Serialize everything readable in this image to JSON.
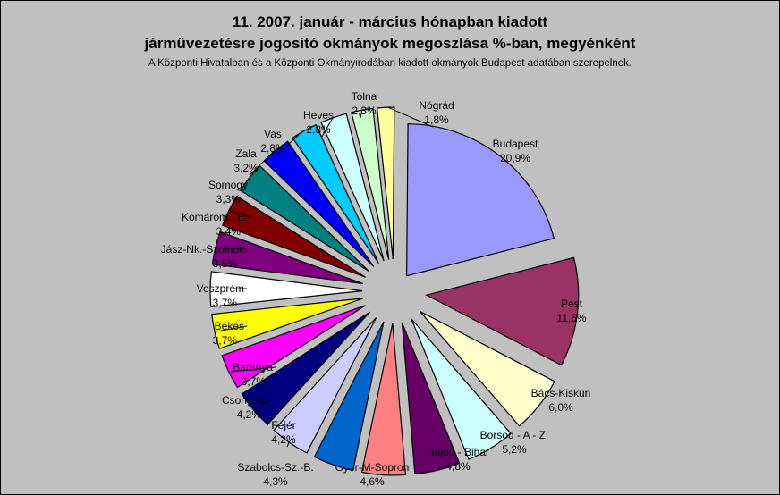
{
  "chart_data": {
    "type": "pie",
    "title_line1": "11. 2007. január - március hónapban kiadott",
    "title_line2": "járművezetésre jogosító okmányok megoszlása %-ban, megyénként",
    "subtitle": "A Központi Hivatalban és a Központi Okmányirodában kiadott okmányok Budapest adatában szerepelnek.",
    "legend": "none",
    "exploded": true,
    "slices": [
      {
        "name": "Budapest",
        "value": 20.9,
        "label": "20,9%",
        "color": "#9999ff"
      },
      {
        "name": "Pest",
        "value": 11.6,
        "label": "11,6%",
        "color": "#993366"
      },
      {
        "name": "Bács-Kiskun",
        "value": 6.0,
        "label": "6,0%",
        "color": "#ffffcc"
      },
      {
        "name": "Borsod - A - Z.",
        "value": 5.2,
        "label": "5,2%",
        "color": "#ccffff"
      },
      {
        "name": "Hajdú - Bihar",
        "value": 4.8,
        "label": "4,8%",
        "color": "#660066"
      },
      {
        "name": "Győr-M-Sopron",
        "value": 4.6,
        "label": "4,6%",
        "color": "#ff8080"
      },
      {
        "name": "Szabolcs-Sz.-B.",
        "value": 4.3,
        "label": "4,3%",
        "color": "#0066cc"
      },
      {
        "name": "Fejér",
        "value": 4.2,
        "label": "4,2%",
        "color": "#ccccff"
      },
      {
        "name": "Csongrád",
        "value": 4.2,
        "label": "4,2%",
        "color": "#000080"
      },
      {
        "name": "Baranya",
        "value": 3.7,
        "label": "3,7%",
        "color": "#ff00ff"
      },
      {
        "name": "Békés",
        "value": 3.7,
        "label": "3,7%",
        "color": "#ffff00"
      },
      {
        "name": "Veszprém",
        "value": 3.7,
        "label": "3,7%",
        "color": "#ffffff"
      },
      {
        "name": "Jász-Nk.-Szolnok",
        "value": 3.5,
        "label": "3,5%",
        "color": "#800080"
      },
      {
        "name": "Komárom - E.",
        "value": 3.4,
        "label": "3,4%",
        "color": "#800000"
      },
      {
        "name": "Somogy",
        "value": 3.3,
        "label": "3,3%",
        "color": "#008080"
      },
      {
        "name": "Zala",
        "value": 3.2,
        "label": "3,2%",
        "color": "#0000ff"
      },
      {
        "name": "Vas",
        "value": 2.8,
        "label": "2,8%",
        "color": "#00ccff"
      },
      {
        "name": "Heves",
        "value": 2.8,
        "label": "2,8%",
        "color": "#ccffff"
      },
      {
        "name": "Tolna",
        "value": 2.3,
        "label": "2,3%",
        "color": "#ccffcc"
      },
      {
        "name": "Nógrád",
        "value": 1.8,
        "label": "1,8%",
        "color": "#ffff99"
      }
    ]
  }
}
